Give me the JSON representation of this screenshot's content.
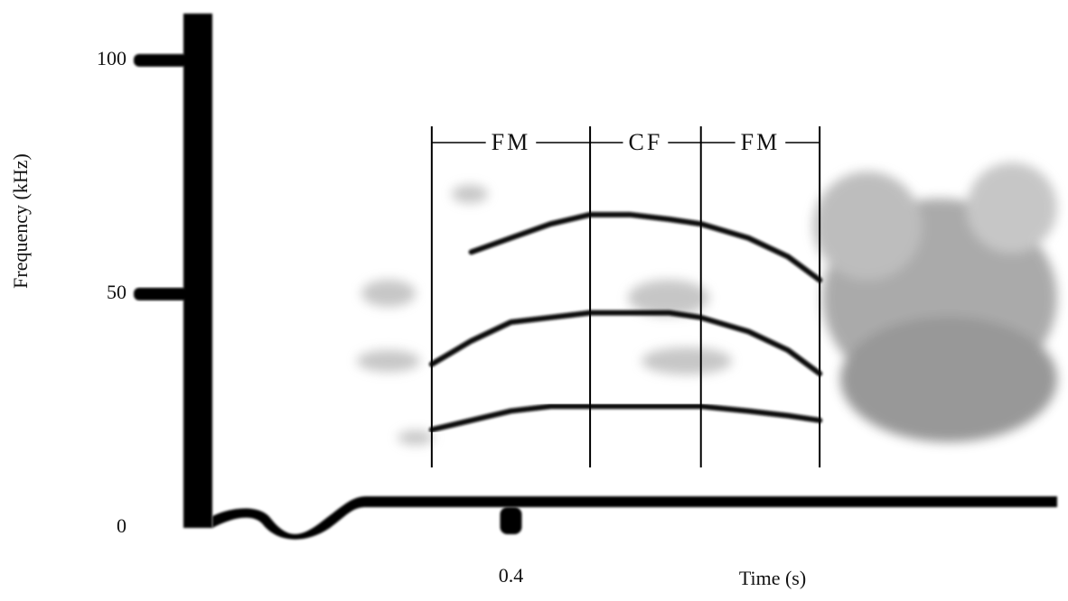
{
  "chart_data": {
    "type": "line",
    "xlabel": "Time (s)",
    "ylabel": "Frequency (kHz)",
    "xlim": [
      0,
      1.09
    ],
    "ylim": [
      0,
      110
    ],
    "xticks": [
      0.4
    ],
    "yticks": [
      0,
      50,
      100
    ],
    "x": [
      0.3,
      0.35,
      0.4,
      0.45,
      0.5,
      0.55,
      0.6,
      0.64,
      0.7,
      0.75,
      0.79
    ],
    "series": [
      {
        "color": "#111111",
        "values": [
          null,
          59,
          62,
          65,
          67,
          67,
          66,
          65,
          62,
          58,
          53
        ]
      },
      {
        "color": "#111111",
        "values": [
          35,
          40,
          44,
          45,
          46,
          46,
          46,
          45,
          42,
          38,
          33
        ]
      },
      {
        "color": "#111111",
        "values": [
          21,
          23,
          25,
          26,
          26,
          26,
          26,
          26,
          25,
          24,
          23
        ]
      }
    ],
    "segments": [
      "FM",
      "CF",
      "FM"
    ],
    "segment_bounds": [
      0.3,
      0.5,
      0.64,
      0.79
    ]
  }
}
